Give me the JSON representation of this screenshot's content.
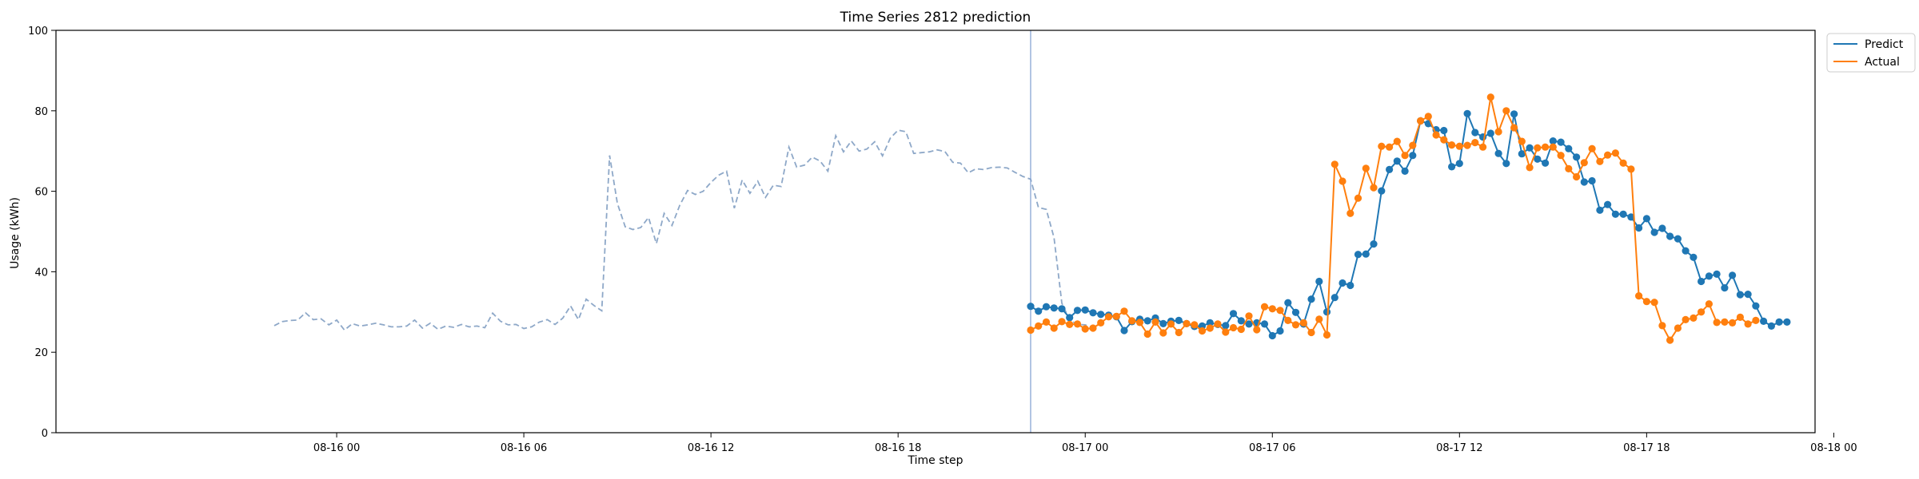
{
  "chart_data": {
    "type": "line",
    "title": "Time Series 2812 prediction",
    "xlabel": "Time step",
    "ylabel": "Usage (kWh)",
    "ylim": [
      0,
      100
    ],
    "yticks": [
      0,
      20,
      40,
      60,
      80,
      100
    ],
    "xlim_hours": [
      -9.0,
      47.4
    ],
    "x_unit": "hours since 08-16 00",
    "xticks": [
      {
        "label": "08-16 00",
        "h": 0
      },
      {
        "label": "08-16 06",
        "h": 6
      },
      {
        "label": "08-16 12",
        "h": 12
      },
      {
        "label": "08-16 18",
        "h": 18
      },
      {
        "label": "08-17 00",
        "h": 24
      },
      {
        "label": "08-17 06",
        "h": 30
      },
      {
        "label": "08-17 12",
        "h": 36
      },
      {
        "label": "08-17 18",
        "h": 42
      },
      {
        "label": "08-18 00",
        "h": 48
      }
    ],
    "grid": false,
    "legend_position": "top-right",
    "forecast_start_h": 22.25,
    "history": {
      "start_h": -2,
      "step_h": 0.25,
      "color": "#8ea8c8",
      "values": [
        26.6,
        27.6,
        27.9,
        28.0,
        29.8,
        28.1,
        28.3,
        26.8,
        28.0,
        25.5,
        27.1,
        26.5,
        26.8,
        27.2,
        26.8,
        26.3,
        26.3,
        26.5,
        28.0,
        26.0,
        27.2,
        25.7,
        26.5,
        26.2,
        26.9,
        26.3,
        26.5,
        26.1,
        29.7,
        27.7,
        26.8,
        26.9,
        25.9,
        26.3,
        27.5,
        28.1,
        26.9,
        28.5,
        31.5,
        28.1,
        33.2,
        31.6,
        30.3,
        68.9,
        57.0,
        51.2,
        50.5,
        51.0,
        53.5,
        47.0,
        54.5,
        51.5,
        56.5,
        60.2,
        59.2,
        60.0,
        62.2,
        64.0,
        65.0,
        55.8,
        62.8,
        59.5,
        62.5,
        58.5,
        61.5,
        61.2,
        71.0,
        66.0,
        66.5,
        68.5,
        67.5,
        65.0,
        73.8,
        69.8,
        72.5,
        70.0,
        70.5,
        72.3,
        68.8,
        73.2,
        75.2,
        74.8,
        69.4,
        69.6,
        69.8,
        70.3,
        69.9,
        67.2,
        67.0,
        64.6,
        65.6,
        65.4,
        65.9,
        66.0,
        65.8,
        64.7,
        63.7,
        63.0,
        56.0,
        55.5,
        48.5,
        32.2,
        28.0,
        26.9,
        26.8,
        26.1
      ]
    },
    "forecast_step_h": 0.25,
    "series": [
      {
        "name": "Predict",
        "color": "#1f77b4",
        "values": [
          31.4,
          30.2,
          31.3,
          31.0,
          30.8,
          28.6,
          30.4,
          30.5,
          29.8,
          29.4,
          29.2,
          28.8,
          25.4,
          27.6,
          28.2,
          27.8,
          28.5,
          27.1,
          27.7,
          27.9,
          27.1,
          26.4,
          26.5,
          27.3,
          26.9,
          26.6,
          29.6,
          27.8,
          27.0,
          27.3,
          27.0,
          24.1,
          25.3,
          32.3,
          29.9,
          27.0,
          33.2,
          37.6,
          30.0,
          33.6,
          37.2,
          36.6,
          44.3,
          44.4,
          46.9,
          60.1,
          65.4,
          67.5,
          65.0,
          68.9,
          77.5,
          76.8,
          75.3,
          75.1,
          66.1,
          66.9,
          79.3,
          74.6,
          73.5,
          74.4,
          69.4,
          66.9,
          79.2,
          69.3,
          70.8,
          68.0,
          67.0,
          72.5,
          72.2,
          70.6,
          68.5,
          62.3,
          62.6,
          55.3,
          56.7,
          54.3,
          54.3,
          53.6,
          50.9,
          53.2,
          49.8,
          50.8,
          48.8,
          48.2,
          45.2,
          43.6,
          37.6,
          38.9,
          39.4,
          36.0,
          39.1,
          34.3,
          34.4,
          31.5,
          27.7,
          26.5,
          27.5,
          27.5
        ]
      },
      {
        "name": "Actual",
        "color": "#ff7f0e",
        "values": [
          25.5,
          26.5,
          27.5,
          26.0,
          27.6,
          26.9,
          27.0,
          25.8,
          26.0,
          27.3,
          28.8,
          28.9,
          30.2,
          27.8,
          27.4,
          24.5,
          27.5,
          24.8,
          27.0,
          24.9,
          27.1,
          26.8,
          25.3,
          26.0,
          27.0,
          25.0,
          26.1,
          25.7,
          29.0,
          25.6,
          31.3,
          30.8,
          30.4,
          27.9,
          26.8,
          27.3,
          24.9,
          28.2,
          24.3,
          66.7,
          62.5,
          54.5,
          58.3,
          65.7,
          60.9,
          71.2,
          71.0,
          72.4,
          68.9,
          71.4,
          77.5,
          78.6,
          74.0,
          72.8,
          71.5,
          71.2,
          71.4,
          72.1,
          71.0,
          83.4,
          74.8,
          80.0,
          75.8,
          72.4,
          65.9,
          70.8,
          71.0,
          71.0,
          68.9,
          65.6,
          63.6,
          67.1,
          70.6,
          67.4,
          69.0,
          69.5,
          67.0,
          65.5,
          34.0,
          32.6,
          32.4,
          26.6,
          23.0,
          26.0,
          28.1,
          28.5,
          30.0,
          32.0,
          27.4,
          27.5,
          27.3,
          28.7,
          27.0,
          27.9
        ]
      }
    ]
  }
}
